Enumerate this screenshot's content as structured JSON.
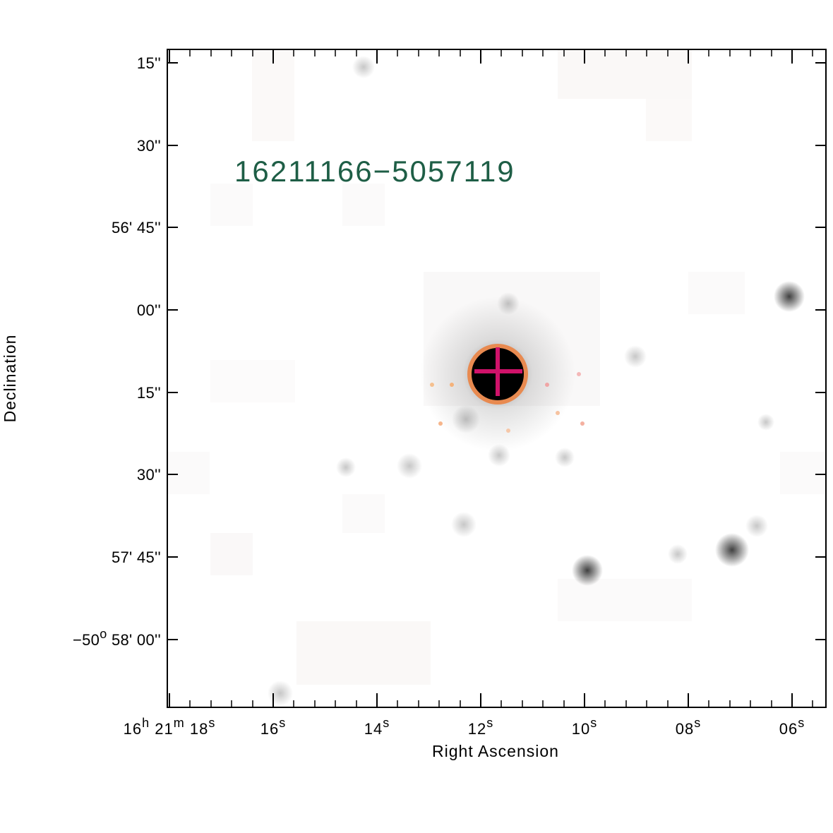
{
  "source_id": "16211166−5057119",
  "axes": {
    "x_title": "Right Ascension",
    "y_title": "Declination"
  },
  "x_ticks": [
    {
      "main": "16",
      "sup": "h",
      "main2": " 21",
      "sup2": "m",
      "main3": " 18",
      "sup3": "s"
    },
    {
      "main": "16",
      "sup": "s"
    },
    {
      "main": "14",
      "sup": "s"
    },
    {
      "main": "12",
      "sup": "s"
    },
    {
      "main": "10",
      "sup": "s"
    },
    {
      "main": "08",
      "sup": "s"
    },
    {
      "main": "06",
      "sup": "s"
    }
  ],
  "y_ticks": [
    {
      "label": "15''"
    },
    {
      "label": "30''"
    },
    {
      "label": "56' 45''"
    },
    {
      "label": "00''"
    },
    {
      "label": "15''"
    },
    {
      "label": "30''"
    },
    {
      "label": "57' 45''"
    },
    {
      "label": "−50",
      "sup": "o",
      "rest": " 58' 00''"
    }
  ],
  "colors": {
    "frame": "#000000",
    "source_text": "#1e5e46",
    "circle": "#e88a50",
    "cross": "#d0126a",
    "star": "#000000"
  }
}
